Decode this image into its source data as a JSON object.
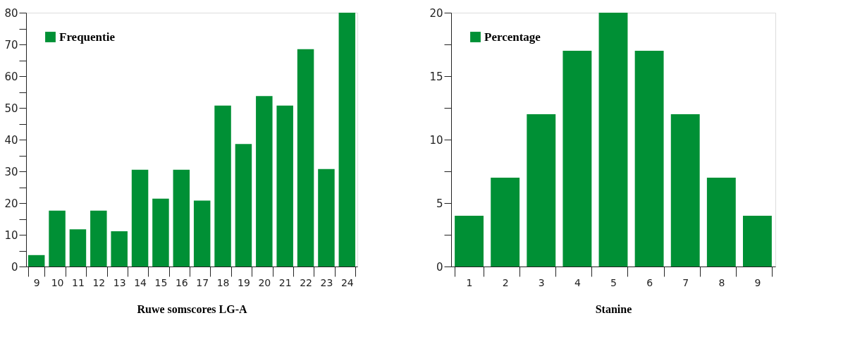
{
  "chart_data": [
    {
      "type": "bar",
      "xlabel": "Ruwe somscores LG-A",
      "categories": [
        "9",
        "10",
        "11",
        "12",
        "13",
        "14",
        "15",
        "16",
        "17",
        "18",
        "19",
        "20",
        "21",
        "22",
        "23",
        "24"
      ],
      "series": [
        {
          "name": "Frequentie",
          "color": "#009035",
          "values": [
            3.6,
            17.6,
            11.7,
            17.6,
            11.1,
            30.5,
            21.4,
            30.5,
            20.8,
            50.7,
            38.6,
            53.7,
            50.7,
            68.5,
            30.7,
            80
          ]
        }
      ],
      "ylim": [
        0,
        80
      ],
      "yticks": [
        0,
        {
          "value": 5,
          "label": null
        },
        10,
        {
          "value": 15,
          "label": null
        },
        20,
        {
          "value": 25,
          "label": null
        },
        30,
        {
          "value": 35,
          "label": null
        },
        40,
        {
          "value": 45,
          "label": null
        },
        50,
        {
          "value": 55,
          "label": null
        },
        60,
        {
          "value": 65,
          "label": null
        },
        70,
        {
          "value": 75,
          "label": null
        },
        80
      ],
      "legend": "top left",
      "grid": false
    },
    {
      "type": "bar",
      "xlabel": "Stanine",
      "categories": [
        "1",
        "2",
        "3",
        "4",
        "5",
        "6",
        "7",
        "8",
        "9"
      ],
      "series": [
        {
          "name": "Percentage",
          "color": "#009035",
          "values": [
            4,
            7,
            12,
            17,
            20,
            17,
            12,
            7,
            4
          ]
        }
      ],
      "ylim": [
        0,
        20
      ],
      "yticks": [
        0,
        {
          "value": 2.5,
          "label": null
        },
        5,
        {
          "value": 7.5,
          "label": null
        },
        10,
        {
          "value": 12.5,
          "label": null
        },
        15,
        {
          "value": 17.5,
          "label": null
        },
        20
      ],
      "legend": "top left",
      "grid": false
    }
  ]
}
